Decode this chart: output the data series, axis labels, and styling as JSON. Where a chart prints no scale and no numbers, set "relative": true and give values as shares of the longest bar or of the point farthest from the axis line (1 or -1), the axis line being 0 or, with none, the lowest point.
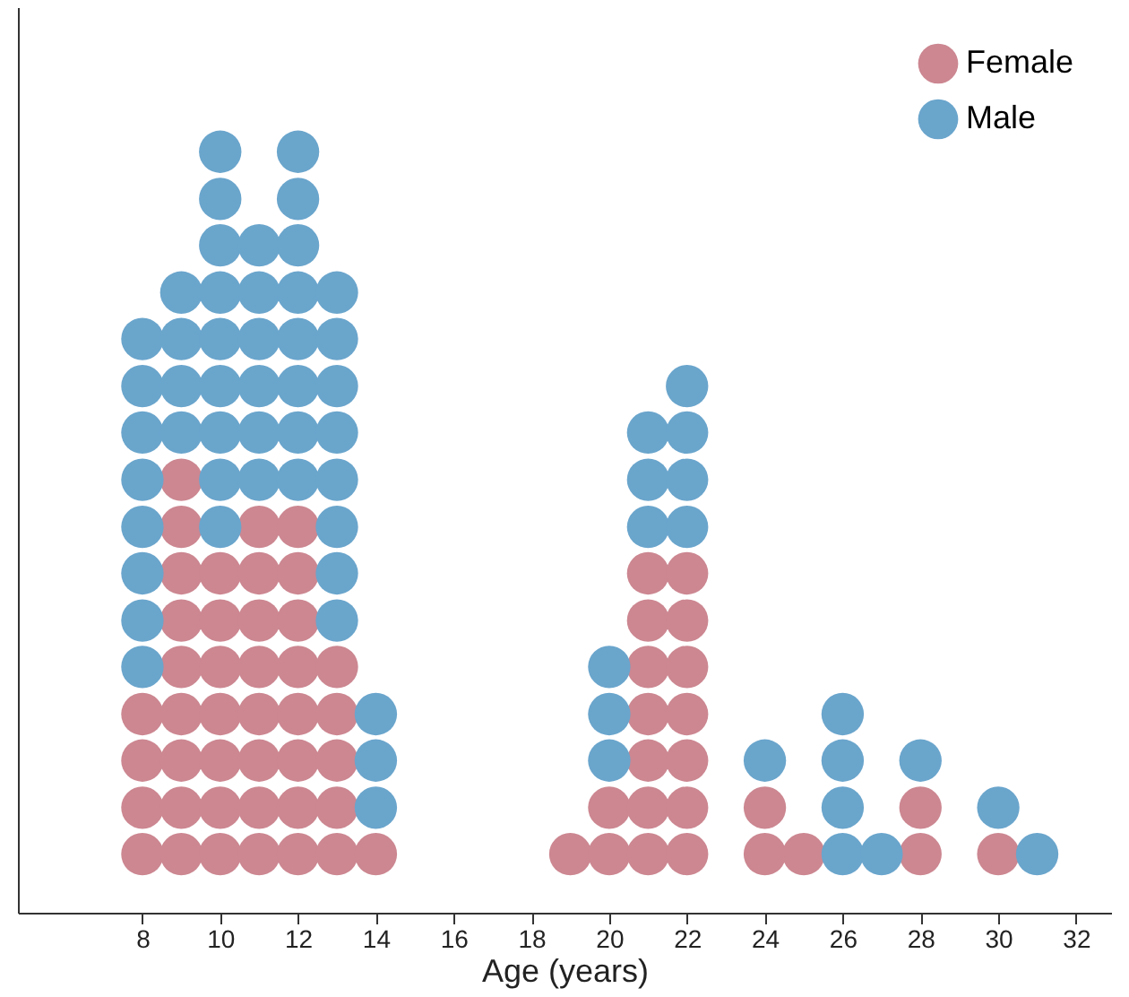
{
  "chart_data": {
    "type": "scatter",
    "xlabel": "Age (years)",
    "relative": true,
    "xlim": [
      4.8,
      32.9
    ],
    "xticks": [
      8,
      10,
      12,
      14,
      16,
      18,
      20,
      22,
      24,
      26,
      28,
      30,
      32
    ],
    "grid": false,
    "legend": "top right",
    "marker": "circle",
    "series": [
      {
        "name": "Female",
        "color": "#cc8791",
        "x": [
          8,
          8,
          8,
          8,
          9,
          9,
          9,
          9,
          9,
          9,
          9,
          9,
          9,
          10,
          10,
          10,
          10,
          10,
          10,
          10,
          11,
          11,
          11,
          11,
          11,
          11,
          11,
          11,
          12,
          12,
          12,
          12,
          12,
          12,
          12,
          12,
          13,
          13,
          13,
          13,
          13,
          14,
          19,
          20,
          20,
          21,
          21,
          21,
          21,
          21,
          21,
          21,
          22,
          22,
          22,
          22,
          22,
          22,
          22,
          24,
          24,
          25,
          28,
          28,
          30
        ],
        "values": [
          0.077,
          0.138,
          0.2,
          0.261,
          0.077,
          0.138,
          0.2,
          0.261,
          0.323,
          0.384,
          0.446,
          0.507,
          0.569,
          0.077,
          0.138,
          0.2,
          0.261,
          0.323,
          0.384,
          0.446,
          0.077,
          0.138,
          0.2,
          0.261,
          0.323,
          0.384,
          0.446,
          0.507,
          0.077,
          0.138,
          0.2,
          0.261,
          0.323,
          0.384,
          0.446,
          0.507,
          0.077,
          0.138,
          0.2,
          0.261,
          0.323,
          0.077,
          0.077,
          0.077,
          0.138,
          0.077,
          0.138,
          0.2,
          0.261,
          0.323,
          0.384,
          0.446,
          0.077,
          0.138,
          0.2,
          0.261,
          0.323,
          0.384,
          0.446,
          0.077,
          0.138,
          0.077,
          0.077,
          0.138,
          0.077
        ]
      },
      {
        "name": "Male",
        "color": "#6aa5cc",
        "x": [
          8,
          8,
          8,
          8,
          8,
          8,
          8,
          8,
          9,
          9,
          9,
          9,
          10,
          10,
          10,
          10,
          10,
          10,
          10,
          10,
          10,
          11,
          11,
          11,
          11,
          11,
          11,
          12,
          12,
          12,
          12,
          12,
          12,
          12,
          12,
          13,
          13,
          13,
          13,
          13,
          13,
          13,
          13,
          14,
          14,
          14,
          20,
          20,
          20,
          21,
          21,
          21,
          22,
          22,
          22,
          22,
          24,
          26,
          26,
          26,
          26,
          27,
          28,
          30,
          31
        ],
        "values": [
          0.323,
          0.384,
          0.446,
          0.507,
          0.569,
          0.631,
          0.692,
          0.754,
          0.631,
          0.692,
          0.754,
          0.815,
          0.507,
          0.569,
          0.631,
          0.692,
          0.754,
          0.815,
          0.877,
          0.938,
          1.0,
          0.569,
          0.631,
          0.692,
          0.754,
          0.815,
          0.877,
          0.569,
          0.631,
          0.692,
          0.754,
          0.815,
          0.877,
          0.938,
          1.0,
          0.384,
          0.446,
          0.507,
          0.569,
          0.631,
          0.692,
          0.754,
          0.815,
          0.138,
          0.2,
          0.261,
          0.2,
          0.261,
          0.323,
          0.507,
          0.569,
          0.631,
          0.507,
          0.569,
          0.631,
          0.692,
          0.2,
          0.077,
          0.138,
          0.2,
          0.261,
          0.077,
          0.2,
          0.138,
          0.077
        ]
      }
    ]
  }
}
